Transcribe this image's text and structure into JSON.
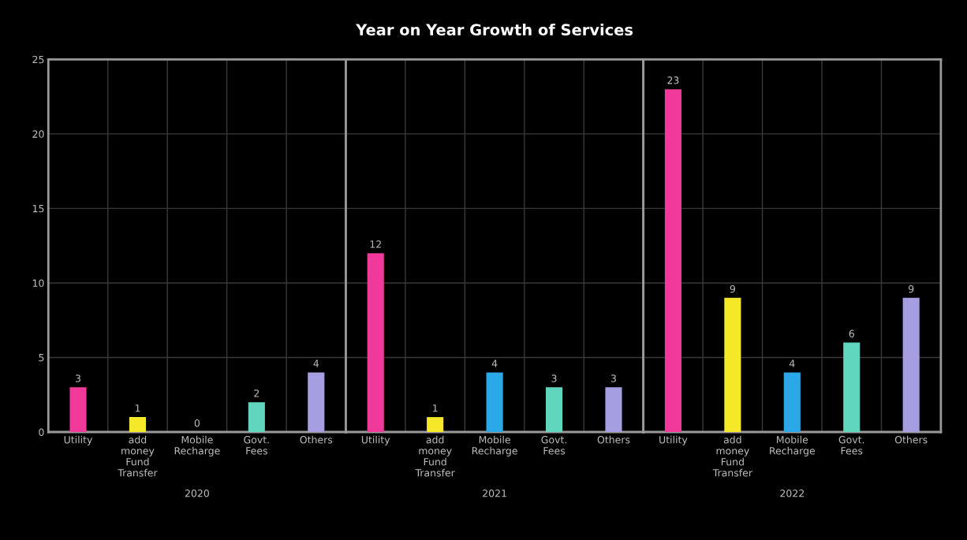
{
  "chart_data": [
    {
      "type": "bar",
      "xlabel": "2020",
      "categories": [
        "Utility",
        "add\nmoney\nFund\nTransfer",
        "Mobile\nRecharge",
        "Govt.\nFees",
        "Others"
      ],
      "values": [
        3,
        1,
        0,
        2,
        4
      ],
      "colors": [
        "#f0399a",
        "#f5e829",
        "#2aa9e8",
        "#5fd6bd",
        "#a59ee0"
      ],
      "ylim": [
        0,
        25
      ],
      "yticks": [
        0,
        5,
        10,
        15,
        20,
        25
      ],
      "grid": true,
      "data_labels": true
    },
    {
      "type": "bar",
      "title": "Year on Year Growth of Services",
      "xlabel": "2021",
      "categories": [
        "Utility",
        "add\nmoney\nFund\nTransfer",
        "Mobile\nRecharge",
        "Govt.\nFees",
        "Others"
      ],
      "values": [
        12,
        1,
        4,
        3,
        3
      ],
      "colors": [
        "#f0399a",
        "#f5e829",
        "#2aa9e8",
        "#5fd6bd",
        "#a59ee0"
      ],
      "ylim": [
        0,
        25
      ],
      "yticks": [
        0,
        5,
        10,
        15,
        20,
        25
      ],
      "tick_labels": "x",
      "grid": true,
      "data_labels": true
    },
    {
      "type": "bar",
      "xlabel": "2022",
      "categories": [
        "Utility",
        "add\nmoney\nFund\nTransfer",
        "Mobile\nRecharge",
        "Govt.\nFees",
        "Others"
      ],
      "values": [
        23,
        9,
        4,
        6,
        9
      ],
      "colors": [
        "#f0399a",
        "#f5e829",
        "#2aa9e8",
        "#5fd6bd",
        "#a59ee0"
      ],
      "ylim": [
        0,
        25
      ],
      "yticks": [
        0,
        5,
        10,
        15,
        20,
        25
      ],
      "tick_labels": "x",
      "grid": true,
      "data_labels": true
    }
  ]
}
